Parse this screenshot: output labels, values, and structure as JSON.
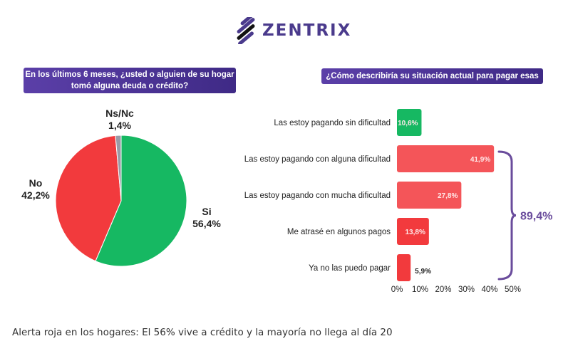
{
  "header": {
    "logo_text": "ZENTRIX"
  },
  "colors": {
    "green": "#16b862",
    "red": "#f23a3d",
    "red_light": "#f45559",
    "gray": "#9a9aa6",
    "purple": "#6a4c9c",
    "banner": "#4b3497"
  },
  "chart_data": [
    {
      "type": "pie",
      "title": "En los últimos 6 meses, ¿usted o alguien de su hogar tomó alguna deuda o crédito?",
      "slices": [
        {
          "label": "Si",
          "value": 56.4,
          "display": "56,4%",
          "color": "#16b862"
        },
        {
          "label": "No",
          "value": 42.2,
          "display": "42,2%",
          "color": "#f23a3d"
        },
        {
          "label": "Ns/Nc",
          "value": 1.4,
          "display": "1,4%",
          "color": "#9a9aa6"
        }
      ]
    },
    {
      "type": "bar",
      "orientation": "horizontal",
      "title": "¿Cómo describiría su situación actual para pagar esas deudas?",
      "categories": [
        "Las estoy pagando sin dificultad",
        "Las estoy pagando con alguna dificultad",
        "Las estoy pagando con mucha dificultad",
        "Me atrasé en algunos pagos",
        "Ya no las puedo pagar"
      ],
      "values": [
        10.6,
        41.9,
        27.8,
        13.8,
        5.9
      ],
      "labels": [
        "10,6%",
        "41,9%",
        "27,8%",
        "13,8%",
        "5,9%"
      ],
      "colors": [
        "#16b862",
        "#f45559",
        "#f45559",
        "#f23a3d",
        "#f23a3d"
      ],
      "xlim": [
        0,
        50
      ],
      "xticks": [
        "0%",
        "10%",
        "20%",
        "30%",
        "40%",
        "50%"
      ],
      "grid": false,
      "annotation": {
        "text": "89,4%",
        "spans_categories": [
          1,
          4
        ],
        "type": "brace"
      }
    }
  ],
  "caption": "Alerta roja en los hogares: El 56% vive a crédito y la mayoría no llega al día 20"
}
